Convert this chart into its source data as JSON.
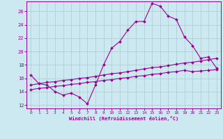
{
  "title": "",
  "xlabel": "Windchill (Refroidissement éolien,°C)",
  "bg_color": "#cce8f0",
  "line_color": "#990099",
  "grid_color": "#b0c8d0",
  "xlim": [
    -0.5,
    23.5
  ],
  "ylim": [
    11.5,
    27.5
  ],
  "xticks": [
    0,
    1,
    2,
    3,
    4,
    5,
    6,
    7,
    8,
    9,
    10,
    11,
    12,
    13,
    14,
    15,
    16,
    17,
    18,
    19,
    20,
    21,
    22,
    23
  ],
  "yticks": [
    12,
    14,
    16,
    18,
    20,
    22,
    24,
    26
  ],
  "line1_x": [
    0,
    1,
    2,
    3,
    4,
    5,
    6,
    7,
    8,
    9,
    10,
    11,
    12,
    13,
    14,
    15,
    16,
    17,
    18,
    19,
    20,
    21,
    22,
    23
  ],
  "line1_y": [
    16.5,
    15.2,
    15.0,
    14.0,
    13.5,
    13.8,
    13.2,
    12.2,
    15.0,
    18.0,
    20.5,
    21.5,
    23.2,
    24.5,
    24.5,
    27.2,
    26.8,
    25.3,
    24.8,
    22.2,
    20.9,
    19.0,
    19.2,
    17.5
  ],
  "line2_x": [
    0,
    1,
    2,
    3,
    4,
    5,
    6,
    7,
    8,
    9,
    10,
    11,
    12,
    13,
    14,
    15,
    16,
    17,
    18,
    19,
    20,
    21,
    22,
    23
  ],
  "line2_y": [
    15.0,
    15.2,
    15.4,
    15.5,
    15.7,
    15.8,
    16.0,
    16.1,
    16.3,
    16.5,
    16.7,
    16.8,
    17.0,
    17.2,
    17.4,
    17.6,
    17.7,
    17.9,
    18.1,
    18.3,
    18.4,
    18.6,
    18.8,
    19.0
  ],
  "line3_x": [
    0,
    1,
    2,
    3,
    4,
    5,
    6,
    7,
    8,
    9,
    10,
    11,
    12,
    13,
    14,
    15,
    16,
    17,
    18,
    19,
    20,
    21,
    22,
    23
  ],
  "line3_y": [
    14.3,
    14.5,
    14.6,
    14.8,
    14.9,
    15.1,
    15.2,
    15.4,
    15.5,
    15.7,
    15.8,
    16.0,
    16.1,
    16.3,
    16.4,
    16.6,
    16.7,
    16.9,
    17.0,
    17.2,
    17.0,
    17.1,
    17.2,
    17.3
  ]
}
